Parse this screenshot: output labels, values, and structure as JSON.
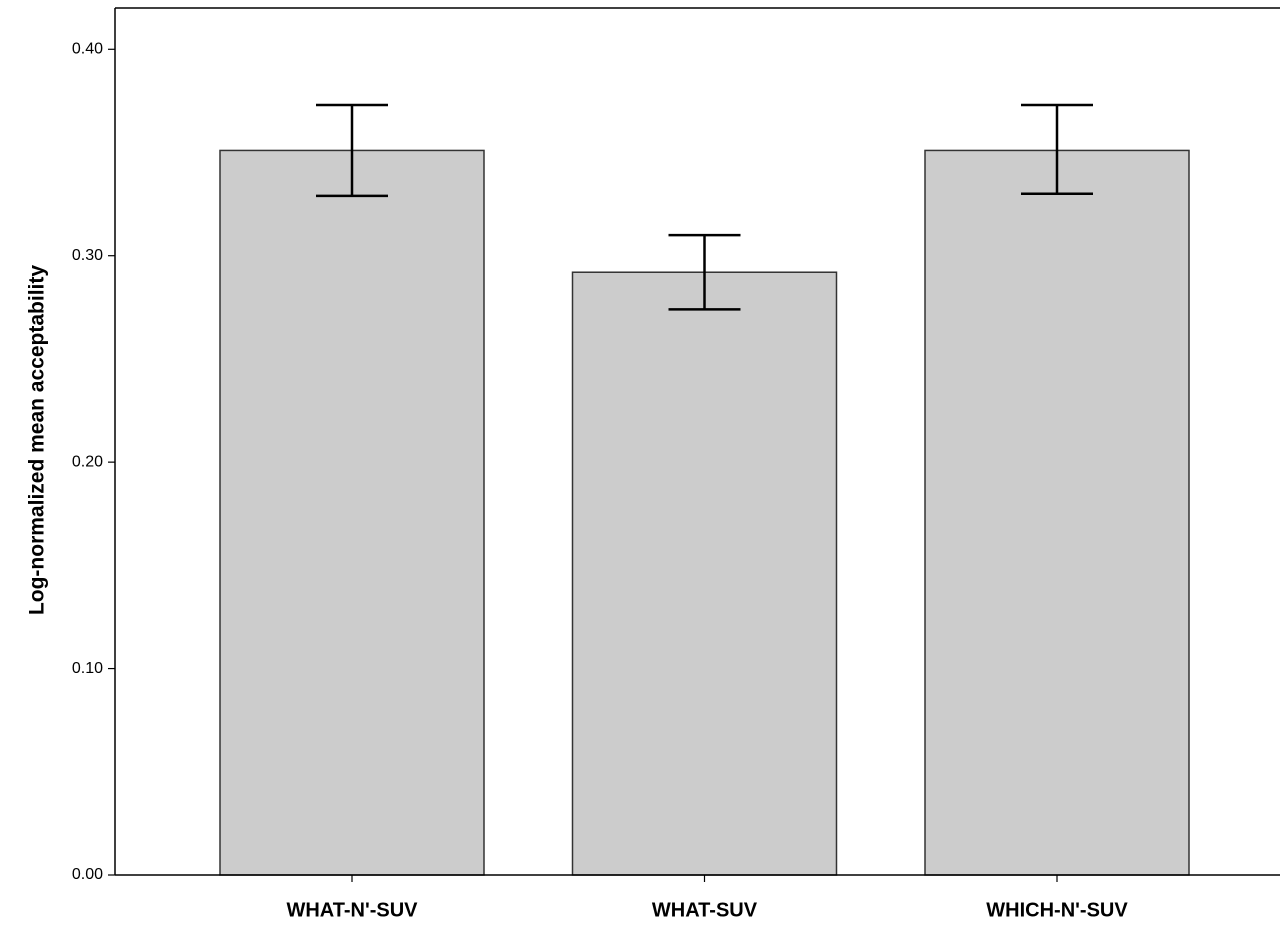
{
  "chart_data": {
    "type": "bar",
    "y_label": "Log-normalized mean acceptability",
    "categories": [
      "WHAT-N'-SUV",
      "WHAT-SUV",
      "WHICH-N'-SUV"
    ],
    "values": [
      0.351,
      0.292,
      0.351
    ],
    "error_low": [
      0.329,
      0.274,
      0.33
    ],
    "error_high": [
      0.373,
      0.31,
      0.373
    ],
    "color": "#cccccc",
    "ylim": [
      0,
      0.42
    ],
    "yticks": [
      {
        "value": 0,
        "label": "0.00"
      },
      {
        "value": 0.1,
        "label": "0.10"
      },
      {
        "value": 0.2,
        "label": "0.20"
      },
      {
        "value": 0.3,
        "label": "0.30"
      },
      {
        "value": 0.4,
        "label": "0.40"
      }
    ],
    "grid": false
  }
}
